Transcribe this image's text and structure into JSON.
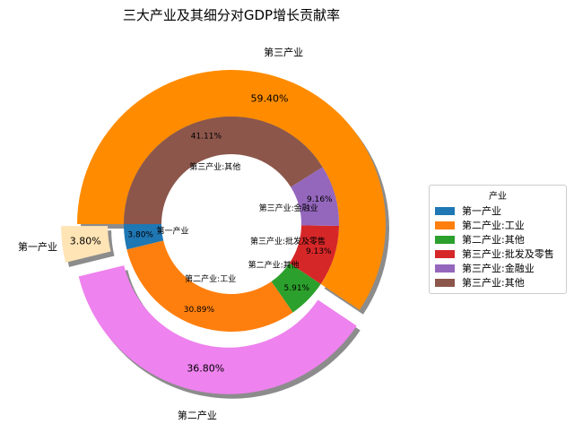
{
  "chart_data": {
    "type": "pie",
    "title": "三大产业及其细分对GDP增长贡献率",
    "legend": {
      "title": "产业",
      "placement": "right"
    },
    "outer_ring": {
      "labels": [
        "第一产业",
        "第二产业",
        "第三产业"
      ],
      "values": [
        3.8,
        36.8,
        59.4
      ],
      "value_labels": [
        "3.80%",
        "36.80%",
        "59.40%"
      ],
      "colors": [
        "#ffe4b5",
        "#ee82ee",
        "#ff8c00"
      ]
    },
    "inner_ring": {
      "labels": [
        "第一产业",
        "第二产业:工业",
        "第二产业:其他",
        "第三产业:批发及零售",
        "第三产业:金融业",
        "第三产业:其他"
      ],
      "values": [
        3.8,
        30.89,
        5.91,
        9.13,
        9.16,
        41.11
      ],
      "value_labels": [
        "3.80%",
        "30.89%",
        "5.91%",
        "9.13%",
        "9.16%",
        "41.11%"
      ],
      "colors": [
        "#1f77b4",
        "#ff7f0e",
        "#2ca02c",
        "#d62728",
        "#9467bd",
        "#8c564b"
      ]
    }
  }
}
